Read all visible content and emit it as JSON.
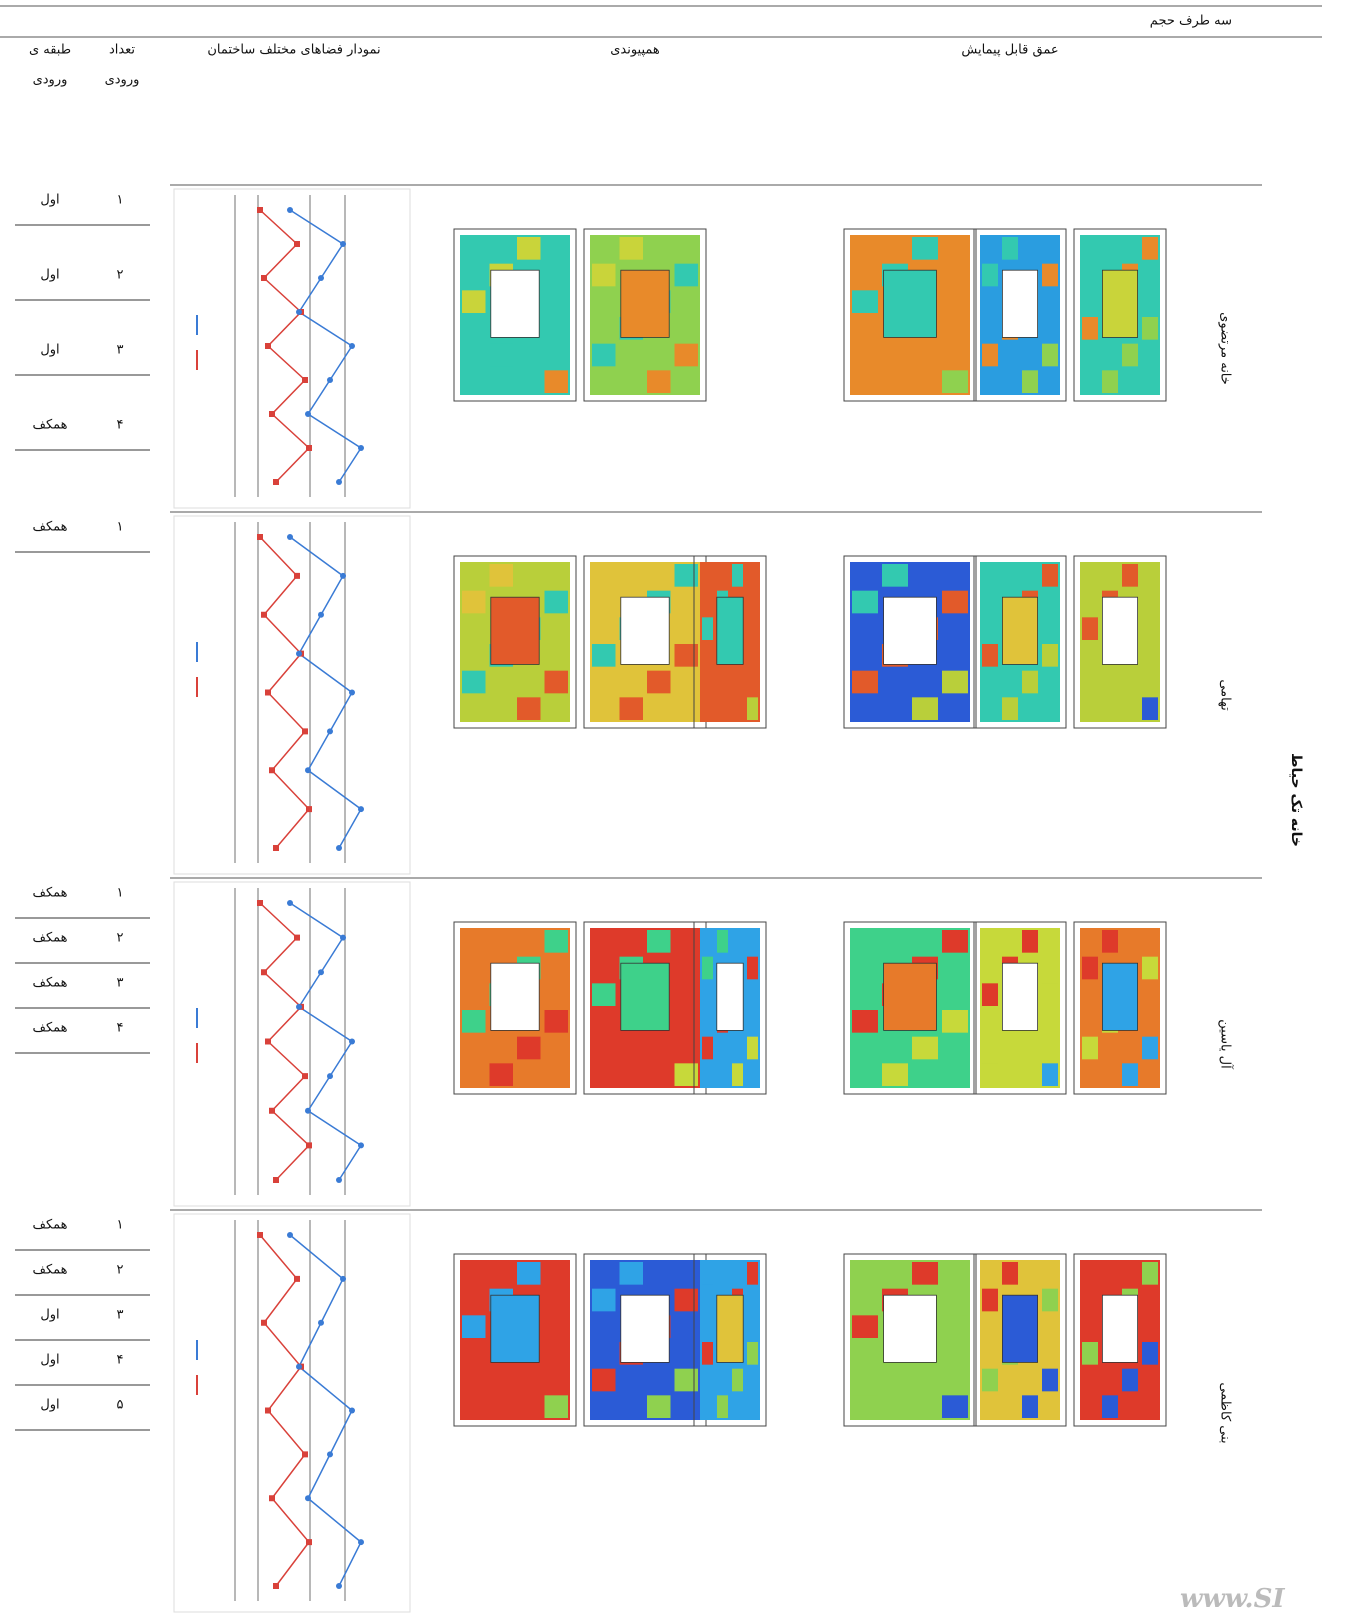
{
  "table": {
    "caption": "سه طرف حجم",
    "columns": {
      "floor": [
        "طبقه ی",
        "ورودی"
      ],
      "count": [
        "تعداد",
        "ورودی"
      ],
      "chart": "نمودار فضاهای مختلف ساختمان",
      "integration": "همپیوندی",
      "depth": "عمق قابل پیمایش"
    },
    "group": "خانه تک حیاط",
    "rows": [
      {
        "name": "خانه مرتضوی",
        "entries": [
          {
            "number": "۱",
            "floor": "اول"
          },
          {
            "number": "۲",
            "floor": "اول"
          },
          {
            "number": "۳",
            "floor": "اول"
          },
          {
            "number": "۴",
            "floor": "همکف"
          }
        ]
      },
      {
        "name": "تهامی",
        "entries": [
          {
            "number": "۱",
            "floor": "همکف"
          }
        ]
      },
      {
        "name": "آل یاسین",
        "entries": [
          {
            "number": "۱",
            "floor": "همکف"
          },
          {
            "number": "۲",
            "floor": "همکف"
          },
          {
            "number": "۳",
            "floor": "همکف"
          },
          {
            "number": "۴",
            "floor": "همکف"
          }
        ]
      },
      {
        "name": "بنی کاظمی",
        "entries": [
          {
            "number": "۱",
            "floor": "همکف"
          },
          {
            "number": "۲",
            "floor": "همکف"
          },
          {
            "number": "۳",
            "floor": "اول"
          },
          {
            "number": "۴",
            "floor": "اول"
          },
          {
            "number": "۵",
            "floor": "اول"
          }
        ]
      }
    ]
  },
  "watermark": "www.SI"
}
